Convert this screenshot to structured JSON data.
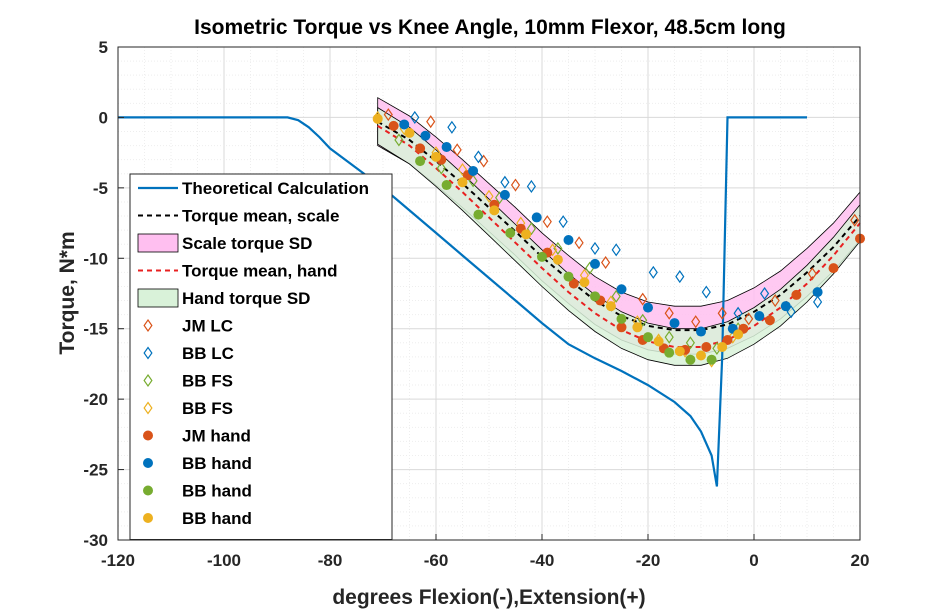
{
  "chart_data": {
    "type": "line",
    "title": "Isometric Torque vs Knee Angle, 10mm Flexor, 48.5cm long",
    "xlabel": "degrees Flexion(-),Extension(+)",
    "ylabel": "Torque, N*m",
    "xlim": [
      -120,
      20
    ],
    "ylim": [
      -30,
      5
    ],
    "xticks": [
      "-120",
      "-100",
      "-80",
      "-60",
      "-40",
      "-20",
      "0",
      "20"
    ],
    "yticks": [
      "5",
      "0",
      "-5",
      "-10",
      "-15",
      "-20",
      "-25",
      "-30"
    ],
    "grid": true,
    "legend_position": "left",
    "series": [
      {
        "name": "Theoretical Calculation",
        "kind": "line",
        "color": "#0072BD",
        "x": [
          -120,
          -88,
          -86,
          -84,
          -82,
          -80,
          -75,
          -70,
          -65,
          -60,
          -55,
          -50,
          -45,
          -40,
          -35,
          -30,
          -25,
          -20,
          -15,
          -12,
          -10,
          -8,
          -7,
          -6,
          -5,
          0,
          10
        ],
        "y": [
          0,
          0,
          -0.2,
          -0.7,
          -1.4,
          -2.2,
          -3.6,
          -5.0,
          -6.6,
          -8.2,
          -9.8,
          -11.4,
          -13.0,
          -14.6,
          -16.1,
          -17.1,
          -18.0,
          -19.0,
          -20.2,
          -21.2,
          -22.3,
          -24.0,
          -26.2,
          -17.0,
          0,
          0,
          0
        ]
      },
      {
        "name": "Torque mean, scale",
        "kind": "dashed",
        "color": "#000000",
        "x": [
          -71,
          -65,
          -60,
          -55,
          -50,
          -45,
          -40,
          -35,
          -30,
          -25,
          -20,
          -15,
          -10,
          -5,
          0,
          5,
          10,
          15,
          20
        ],
        "y": [
          -0.3,
          -1.6,
          -3.1,
          -4.7,
          -6.4,
          -8.1,
          -9.9,
          -11.5,
          -13.0,
          -14.1,
          -14.8,
          -15.1,
          -15.1,
          -14.7,
          -13.8,
          -12.6,
          -11.0,
          -9.2,
          -7.0
        ]
      },
      {
        "name": "Scale torque SD",
        "kind": "band",
        "color": "#FFBFF0",
        "halfwidth": 1.7
      },
      {
        "name": "Torque mean, hand",
        "kind": "dashed",
        "color": "#E82020",
        "x": [
          -71,
          -65,
          -60,
          -55,
          -50,
          -45,
          -40,
          -35,
          -30,
          -25,
          -20,
          -15,
          -10,
          -5,
          0,
          5,
          10,
          15,
          20
        ],
        "y": [
          -0.6,
          -2.0,
          -3.6,
          -5.3,
          -7.1,
          -8.9,
          -10.7,
          -12.4,
          -13.9,
          -15.1,
          -15.9,
          -16.3,
          -16.3,
          -15.8,
          -14.8,
          -13.5,
          -11.8,
          -9.8,
          -7.5
        ]
      },
      {
        "name": "Hand torque SD",
        "kind": "band",
        "color": "#D9F2D9",
        "halfwidth": 1.3
      },
      {
        "name": "JM LC",
        "kind": "diamond",
        "color": "#D95319",
        "points": [
          [
            -69,
            0.2
          ],
          [
            -61,
            -0.3
          ],
          [
            -56,
            -2.3
          ],
          [
            -51,
            -3.1
          ],
          [
            -45,
            -4.8
          ],
          [
            -39,
            -7.4
          ],
          [
            -33,
            -8.9
          ],
          [
            -28,
            -10.3
          ],
          [
            -21,
            -12.9
          ],
          [
            -16,
            -13.9
          ],
          [
            -11,
            -14.5
          ],
          [
            -6,
            -13.9
          ],
          [
            -1,
            -14.3
          ],
          [
            4,
            -13.0
          ],
          [
            11,
            -11.1
          ],
          [
            19,
            -7.3
          ]
        ]
      },
      {
        "name": "BB LC",
        "kind": "diamond",
        "color": "#0072BD",
        "points": [
          [
            -64,
            0.0
          ],
          [
            -57,
            -0.7
          ],
          [
            -52,
            -2.8
          ],
          [
            -47,
            -4.6
          ],
          [
            -42,
            -4.9
          ],
          [
            -36,
            -7.4
          ],
          [
            -30,
            -9.3
          ],
          [
            -26,
            -9.4
          ],
          [
            -19,
            -11.0
          ],
          [
            -14,
            -11.3
          ],
          [
            -9,
            -12.4
          ],
          [
            -3,
            -13.9
          ],
          [
            2,
            -12.5
          ],
          [
            7,
            -13.8
          ],
          [
            12,
            -13.1
          ]
        ]
      },
      {
        "name": "BB FS",
        "kind": "diamond",
        "color": "#77AC30",
        "points": [
          [
            -67,
            -1.6
          ],
          [
            -59,
            -3.6
          ],
          [
            -53,
            -4.5
          ],
          [
            -48,
            -5.7
          ],
          [
            -42,
            -7.9
          ],
          [
            -37,
            -9.3
          ],
          [
            -31,
            -10.7
          ],
          [
            -26,
            -12.7
          ],
          [
            -21,
            -14.4
          ],
          [
            -16,
            -15.6
          ],
          [
            -12,
            -16.0
          ],
          [
            -7,
            -16.4
          ],
          [
            -3,
            -15.0
          ]
        ]
      },
      {
        "name": "BB FS",
        "kind": "diamond",
        "color": "#EDB120",
        "points": [
          [
            -71,
            0.0
          ],
          [
            -66,
            -0.8
          ],
          [
            -60,
            -2.5
          ],
          [
            -55,
            -3.7
          ],
          [
            -50,
            -5.6
          ],
          [
            -44,
            -7.5
          ],
          [
            -38,
            -9.4
          ],
          [
            -32,
            -11.2
          ],
          [
            -27,
            -13.1
          ],
          [
            -22,
            -14.5
          ],
          [
            -18,
            -15.8
          ],
          [
            -13,
            -16.6
          ],
          [
            -8,
            -17.3
          ],
          [
            -4,
            -15.6
          ]
        ]
      },
      {
        "name": "JM hand",
        "kind": "dot",
        "color": "#D95319",
        "points": [
          [
            -68,
            -0.6
          ],
          [
            -63,
            -2.2
          ],
          [
            -59,
            -3.0
          ],
          [
            -54,
            -4.1
          ],
          [
            -49,
            -6.2
          ],
          [
            -44,
            -7.9
          ],
          [
            -39,
            -9.6
          ],
          [
            -34,
            -11.8
          ],
          [
            -29,
            -13.0
          ],
          [
            -25,
            -14.9
          ],
          [
            -21,
            -15.8
          ],
          [
            -17,
            -16.4
          ],
          [
            -13,
            -16.5
          ],
          [
            -9,
            -16.3
          ],
          [
            -5,
            -15.8
          ],
          [
            -2,
            -15.0
          ],
          [
            3,
            -14.4
          ],
          [
            8,
            -12.6
          ],
          [
            15,
            -10.7
          ],
          [
            20,
            -8.6
          ]
        ]
      },
      {
        "name": "BB hand",
        "kind": "dot",
        "color": "#0072BD",
        "points": [
          [
            -66,
            -0.5
          ],
          [
            -62,
            -1.3
          ],
          [
            -58,
            -2.1
          ],
          [
            -53,
            -3.8
          ],
          [
            -47,
            -5.5
          ],
          [
            -41,
            -7.1
          ],
          [
            -35,
            -8.7
          ],
          [
            -30,
            -10.4
          ],
          [
            -25,
            -12.2
          ],
          [
            -20,
            -13.5
          ],
          [
            -15,
            -14.6
          ],
          [
            -10,
            -15.2
          ],
          [
            -4,
            -15.0
          ],
          [
            1,
            -14.1
          ],
          [
            6,
            -13.4
          ],
          [
            12,
            -12.4
          ]
        ]
      },
      {
        "name": "BB hand",
        "kind": "dot",
        "color": "#77AC30",
        "points": [
          [
            -63,
            -3.1
          ],
          [
            -58,
            -4.8
          ],
          [
            -52,
            -6.9
          ],
          [
            -46,
            -8.2
          ],
          [
            -40,
            -9.9
          ],
          [
            -35,
            -11.3
          ],
          [
            -30,
            -12.7
          ],
          [
            -25,
            -14.3
          ],
          [
            -20,
            -15.6
          ],
          [
            -16,
            -16.7
          ],
          [
            -12,
            -17.2
          ],
          [
            -8,
            -17.2
          ]
        ]
      },
      {
        "name": "BB hand",
        "kind": "dot",
        "color": "#EDB120",
        "points": [
          [
            -71,
            -0.1
          ],
          [
            -65,
            -1.1
          ],
          [
            -60,
            -2.8
          ],
          [
            -55,
            -4.6
          ],
          [
            -49,
            -6.6
          ],
          [
            -43,
            -8.3
          ],
          [
            -37,
            -10.1
          ],
          [
            -32,
            -11.7
          ],
          [
            -27,
            -13.4
          ],
          [
            -22,
            -14.9
          ],
          [
            -18,
            -15.9
          ],
          [
            -14,
            -16.6
          ],
          [
            -10,
            -16.9
          ],
          [
            -6,
            -16.3
          ],
          [
            -3,
            -15.4
          ]
        ]
      }
    ]
  }
}
